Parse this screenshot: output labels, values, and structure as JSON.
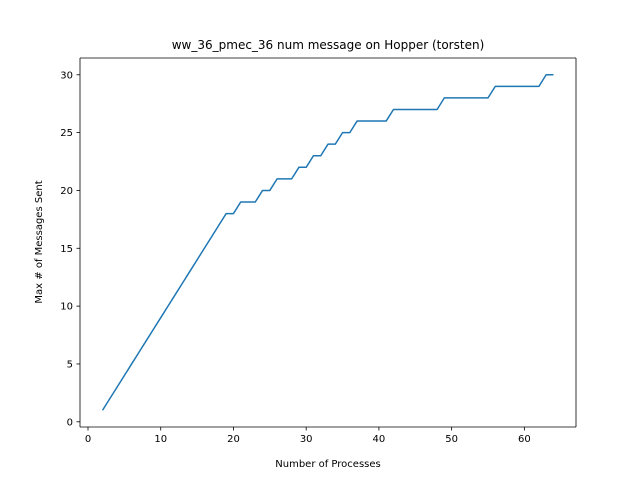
{
  "chart_data": {
    "type": "line",
    "title": "ww_36_pmec_36 num message on Hopper (torsten)",
    "xlabel": "Number of Processes",
    "ylabel": "Max # of Messages Sent",
    "xlim": [
      -1.1,
      67.1
    ],
    "ylim": [
      -0.45,
      31.45
    ],
    "xticks": [
      0,
      10,
      20,
      30,
      40,
      50,
      60
    ],
    "yticks": [
      0,
      5,
      10,
      15,
      20,
      25,
      30
    ],
    "grid": false,
    "line_color": "#1f77b4",
    "series": [
      {
        "x": [
          2,
          3,
          4,
          5,
          6,
          7,
          8,
          9,
          10,
          11,
          12,
          13,
          14,
          15,
          16,
          17,
          18,
          19,
          20,
          21,
          22,
          23,
          24,
          25,
          26,
          27,
          28,
          29,
          30,
          31,
          32,
          33,
          34,
          35,
          36,
          37,
          38,
          39,
          40,
          41,
          42,
          43,
          44,
          45,
          46,
          47,
          48,
          49,
          50,
          51,
          52,
          53,
          54,
          55,
          56,
          57,
          58,
          59,
          60,
          61,
          62,
          63,
          64
        ],
        "values": [
          1,
          2,
          3,
          4,
          5,
          6,
          7,
          8,
          9,
          10,
          11,
          12,
          13,
          14,
          15,
          16,
          17,
          18,
          18,
          19,
          19,
          19,
          20,
          20,
          21,
          21,
          21,
          22,
          22,
          23,
          23,
          24,
          24,
          25,
          25,
          26,
          26,
          26,
          26,
          26,
          27,
          27,
          27,
          27,
          27,
          27,
          27,
          28,
          28,
          28,
          28,
          28,
          28,
          28,
          29,
          29,
          29,
          29,
          29,
          29,
          29,
          30,
          30
        ]
      }
    ]
  }
}
